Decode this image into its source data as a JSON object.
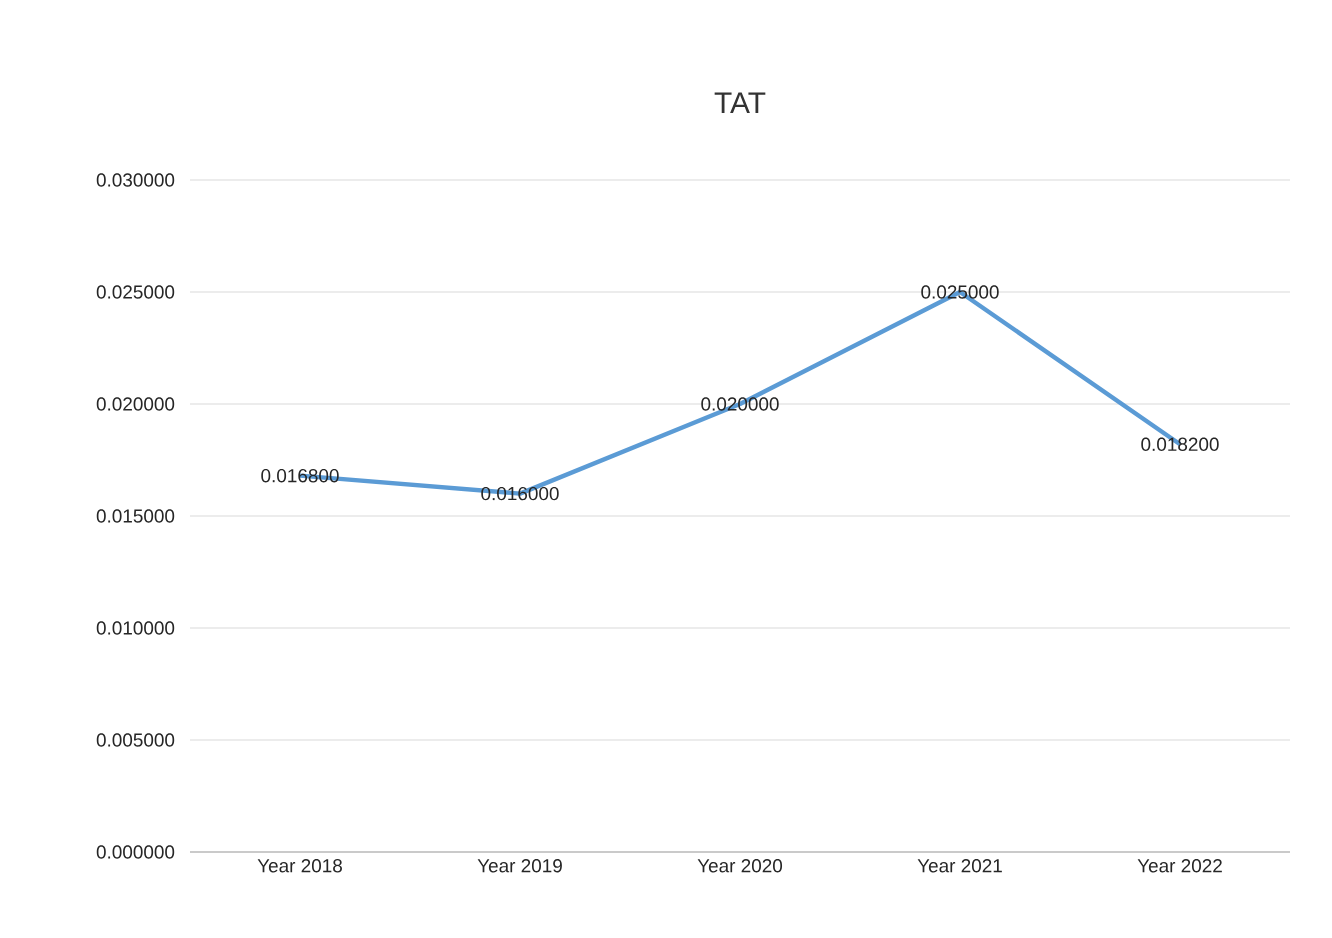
{
  "chart_data": {
    "type": "line",
    "title": "TAT",
    "categories": [
      "Year 2018",
      "Year 2019",
      "Year 2020",
      "Year 2021",
      "Year 2022"
    ],
    "series": [
      {
        "color": "#5b9bd5",
        "values": [
          0.0168,
          0.016,
          0.02,
          0.025,
          0.0182
        ],
        "value_labels": [
          "0.016800",
          "0.016000",
          "0.020000",
          "0.025000",
          "0.018200"
        ]
      }
    ],
    "ylim": [
      0,
      0.03
    ],
    "yticks": [
      {
        "value": 0,
        "label": "0.000000"
      },
      {
        "value": 0.005,
        "label": "0.005000"
      },
      {
        "value": 0.01,
        "label": "0.010000"
      },
      {
        "value": 0.015,
        "label": "0.015000"
      },
      {
        "value": 0.02,
        "label": "0.020000"
      },
      {
        "value": 0.025,
        "label": "0.025000"
      },
      {
        "value": 0.03,
        "label": "0.030000"
      }
    ],
    "grid": "y",
    "marker": "none",
    "line_style": "solid"
  }
}
